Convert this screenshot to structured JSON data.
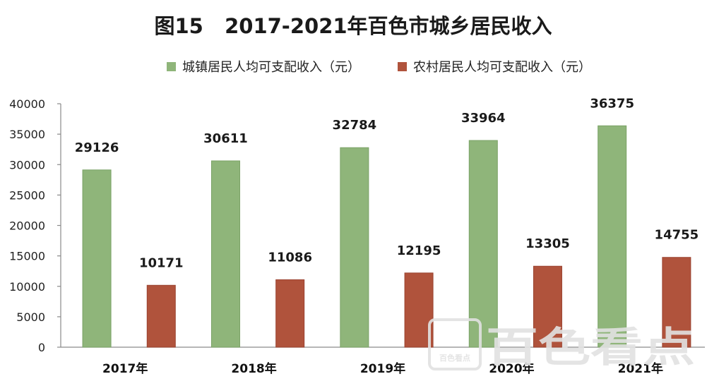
{
  "title": "图15   2017-2021年百色市城乡居民收入",
  "watermark": {
    "brand": "百色看点",
    "small": "百色看点"
  },
  "colors": {
    "urban": "#8fb57a",
    "rural": "#b0533c"
  },
  "chart_data": {
    "type": "bar",
    "categories": [
      "2017年",
      "2018年",
      "2019年",
      "2020年",
      "2021年"
    ],
    "series": [
      {
        "name": "城镇居民人均可支配收入（元）",
        "values": [
          29126,
          30611,
          32784,
          33964,
          36375
        ]
      },
      {
        "name": "农村居民人均可支配收入（元）",
        "values": [
          10171,
          11086,
          12195,
          13305,
          14755
        ]
      }
    ],
    "ylim": [
      0,
      40000
    ],
    "yticks": [
      "0",
      "5000",
      "10000",
      "15000",
      "20000",
      "25000",
      "30000",
      "35000",
      "40000"
    ],
    "legend": "top",
    "grid": false,
    "xlabel": "",
    "ylabel": ""
  }
}
